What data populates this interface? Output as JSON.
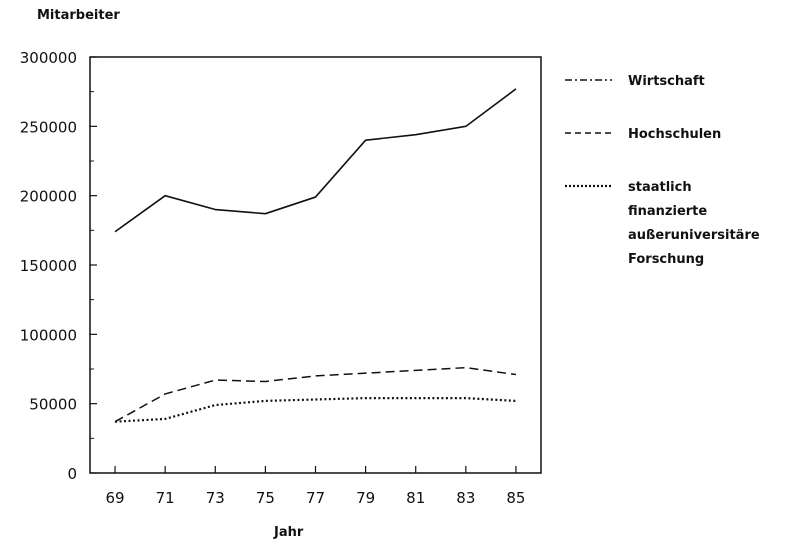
{
  "chart_data": {
    "type": "line",
    "title": "",
    "ylabel": "Mitarbeiter",
    "xlabel": "Jahr",
    "x": [
      69,
      71,
      73,
      75,
      77,
      79,
      81,
      83,
      85
    ],
    "xlim": [
      68,
      86
    ],
    "ylim": [
      0,
      300000
    ],
    "yticks": [
      "0",
      "50000",
      "100000",
      "150000",
      "200000",
      "250000",
      "300000"
    ],
    "xticks": [
      "69",
      "71",
      "73",
      "75",
      "77",
      "79",
      "81",
      "83",
      "85"
    ],
    "grid": false,
    "legend_position": "right",
    "series": [
      {
        "name": "Wirtschaft",
        "style": "solid",
        "values": [
          174000,
          200000,
          190000,
          187000,
          199000,
          240000,
          244000,
          250000,
          277000
        ]
      },
      {
        "name": "Hochschulen",
        "style": "dashed",
        "values": [
          37000,
          57000,
          67000,
          66000,
          70000,
          72000,
          74000,
          76000,
          71000
        ]
      },
      {
        "name": "staatlich finanzierte außeruniversitäre Forschung",
        "style": "dotted",
        "values": [
          37000,
          39000,
          49000,
          52000,
          53000,
          54000,
          54000,
          54000,
          52000
        ]
      }
    ],
    "legend_lines": [
      [
        "Wirtschaft"
      ],
      [
        "Hochschulen"
      ],
      [
        "staatlich",
        "finanzierte",
        "außeruniversitäre",
        "Forschung"
      ]
    ],
    "colors": {
      "line": "#111111",
      "background": "#ffffff"
    }
  }
}
